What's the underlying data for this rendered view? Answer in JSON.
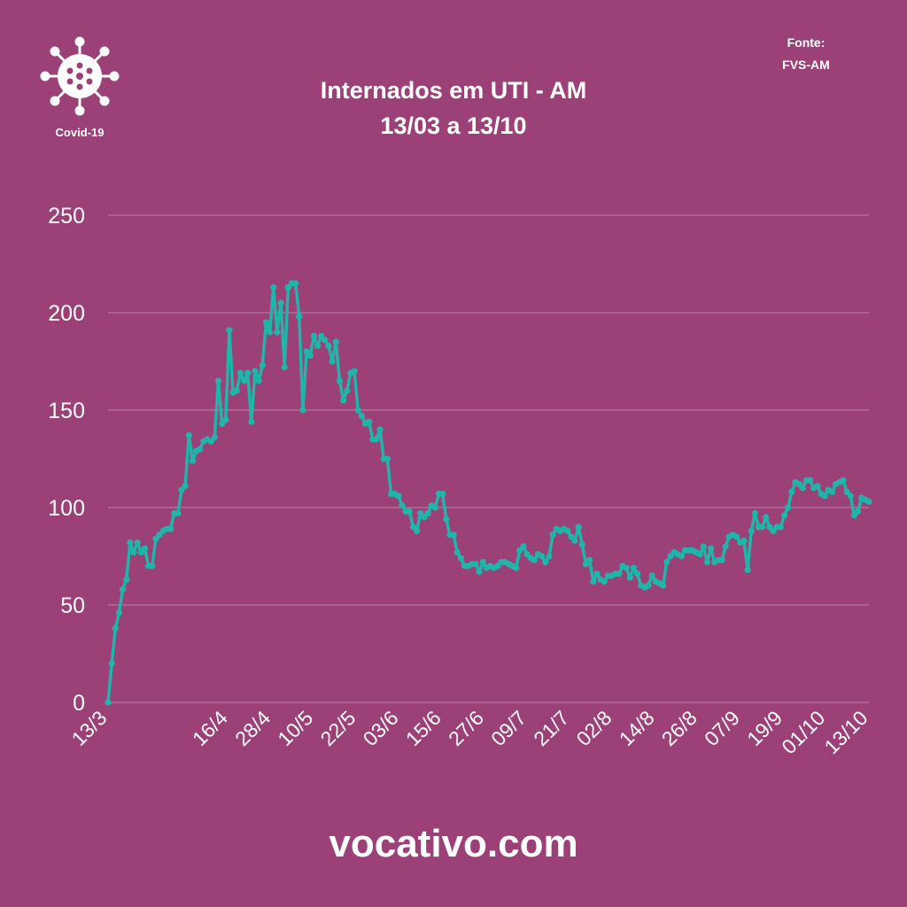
{
  "branding": {
    "logo_icon": "virus-icon",
    "logo_label": "Covid-19",
    "footer": "vocativo.com"
  },
  "source": {
    "label": "Fonte:",
    "value": "FVS-AM"
  },
  "colors": {
    "background": "#9b4178",
    "line": "#1fb5a9",
    "text": "#ffffff"
  },
  "chart_data": {
    "type": "line",
    "title": "Internados em UTI - AM",
    "subtitle": "13/03 a 13/10",
    "start_date": "2020-03-13",
    "end_date": "2020-10-13",
    "ylim": [
      0,
      250
    ],
    "yticks": [
      0,
      50,
      100,
      150,
      200,
      250
    ],
    "xticks": [
      {
        "label": "13/3",
        "date": "2020-03-13"
      },
      {
        "label": "16/4",
        "date": "2020-04-16"
      },
      {
        "label": "28/4",
        "date": "2020-04-28"
      },
      {
        "label": "10/5",
        "date": "2020-05-10"
      },
      {
        "label": "22/5",
        "date": "2020-05-22"
      },
      {
        "label": "03/6",
        "date": "2020-06-03"
      },
      {
        "label": "15/6",
        "date": "2020-06-15"
      },
      {
        "label": "27/6",
        "date": "2020-06-27"
      },
      {
        "label": "09/7",
        "date": "2020-07-09"
      },
      {
        "label": "21/7",
        "date": "2020-07-21"
      },
      {
        "label": "02/8",
        "date": "2020-08-02"
      },
      {
        "label": "14/8",
        "date": "2020-08-14"
      },
      {
        "label": "26/8",
        "date": "2020-08-26"
      },
      {
        "label": "07/9",
        "date": "2020-09-07"
      },
      {
        "label": "19/9",
        "date": "2020-09-19"
      },
      {
        "label": "01/10",
        "date": "2020-10-01"
      },
      {
        "label": "13/10",
        "date": "2020-10-13"
      }
    ],
    "grid": true,
    "series": [
      {
        "values": [
          0,
          20,
          38,
          46,
          58,
          63,
          82,
          77,
          82,
          77,
          79,
          70,
          70,
          84,
          86,
          88,
          89,
          89,
          97,
          97,
          109,
          111,
          137,
          124,
          129,
          130,
          134,
          135,
          134,
          136,
          165,
          143,
          145,
          191,
          159,
          160,
          169,
          165,
          169,
          144,
          170,
          165,
          173,
          195,
          190,
          213,
          190,
          205,
          172,
          213,
          215,
          215,
          198,
          150,
          180,
          178,
          188,
          183,
          188,
          186,
          183,
          175,
          185,
          165,
          155,
          160,
          169,
          170,
          150,
          147,
          143,
          144,
          135,
          135,
          140,
          125,
          125,
          107,
          107,
          106,
          101,
          98,
          98,
          90,
          88,
          97,
          95,
          97,
          101,
          100,
          107,
          107,
          94,
          86,
          86,
          77,
          74,
          70,
          70,
          71,
          71,
          67,
          72,
          69,
          70,
          69,
          70,
          72,
          72,
          71,
          70,
          69,
          78,
          80,
          76,
          74,
          73,
          76,
          75,
          72,
          75,
          86,
          89,
          88,
          89,
          88,
          85,
          83,
          90,
          81,
          71,
          73,
          62,
          66,
          63,
          62,
          65,
          65,
          66,
          66,
          70,
          69,
          64,
          69,
          66,
          60,
          59,
          60,
          65,
          62,
          61,
          60,
          72,
          75,
          77,
          76,
          75,
          78,
          78,
          78,
          77,
          76,
          80,
          72,
          79,
          72,
          73,
          73,
          80,
          85,
          86,
          85,
          82,
          83,
          68,
          88,
          97,
          90,
          90,
          95,
          90,
          88,
          90,
          90,
          96,
          100,
          108,
          113,
          112,
          110,
          114,
          114,
          110,
          111,
          107,
          106,
          109,
          108,
          112,
          113,
          114,
          108,
          106,
          96,
          98,
          105,
          104,
          103
        ]
      }
    ]
  }
}
